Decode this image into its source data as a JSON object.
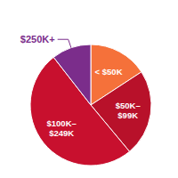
{
  "chart_data": {
    "type": "pie",
    "categories": [
      "< $50K",
      "$50K–\n$99K",
      "$100K–\n$249K",
      "$250K+"
    ],
    "values": [
      15,
      22,
      48,
      10
    ],
    "colors": [
      "#F5713A",
      "#B8112A",
      "#C8102E",
      "#7B2D8B"
    ]
  }
}
